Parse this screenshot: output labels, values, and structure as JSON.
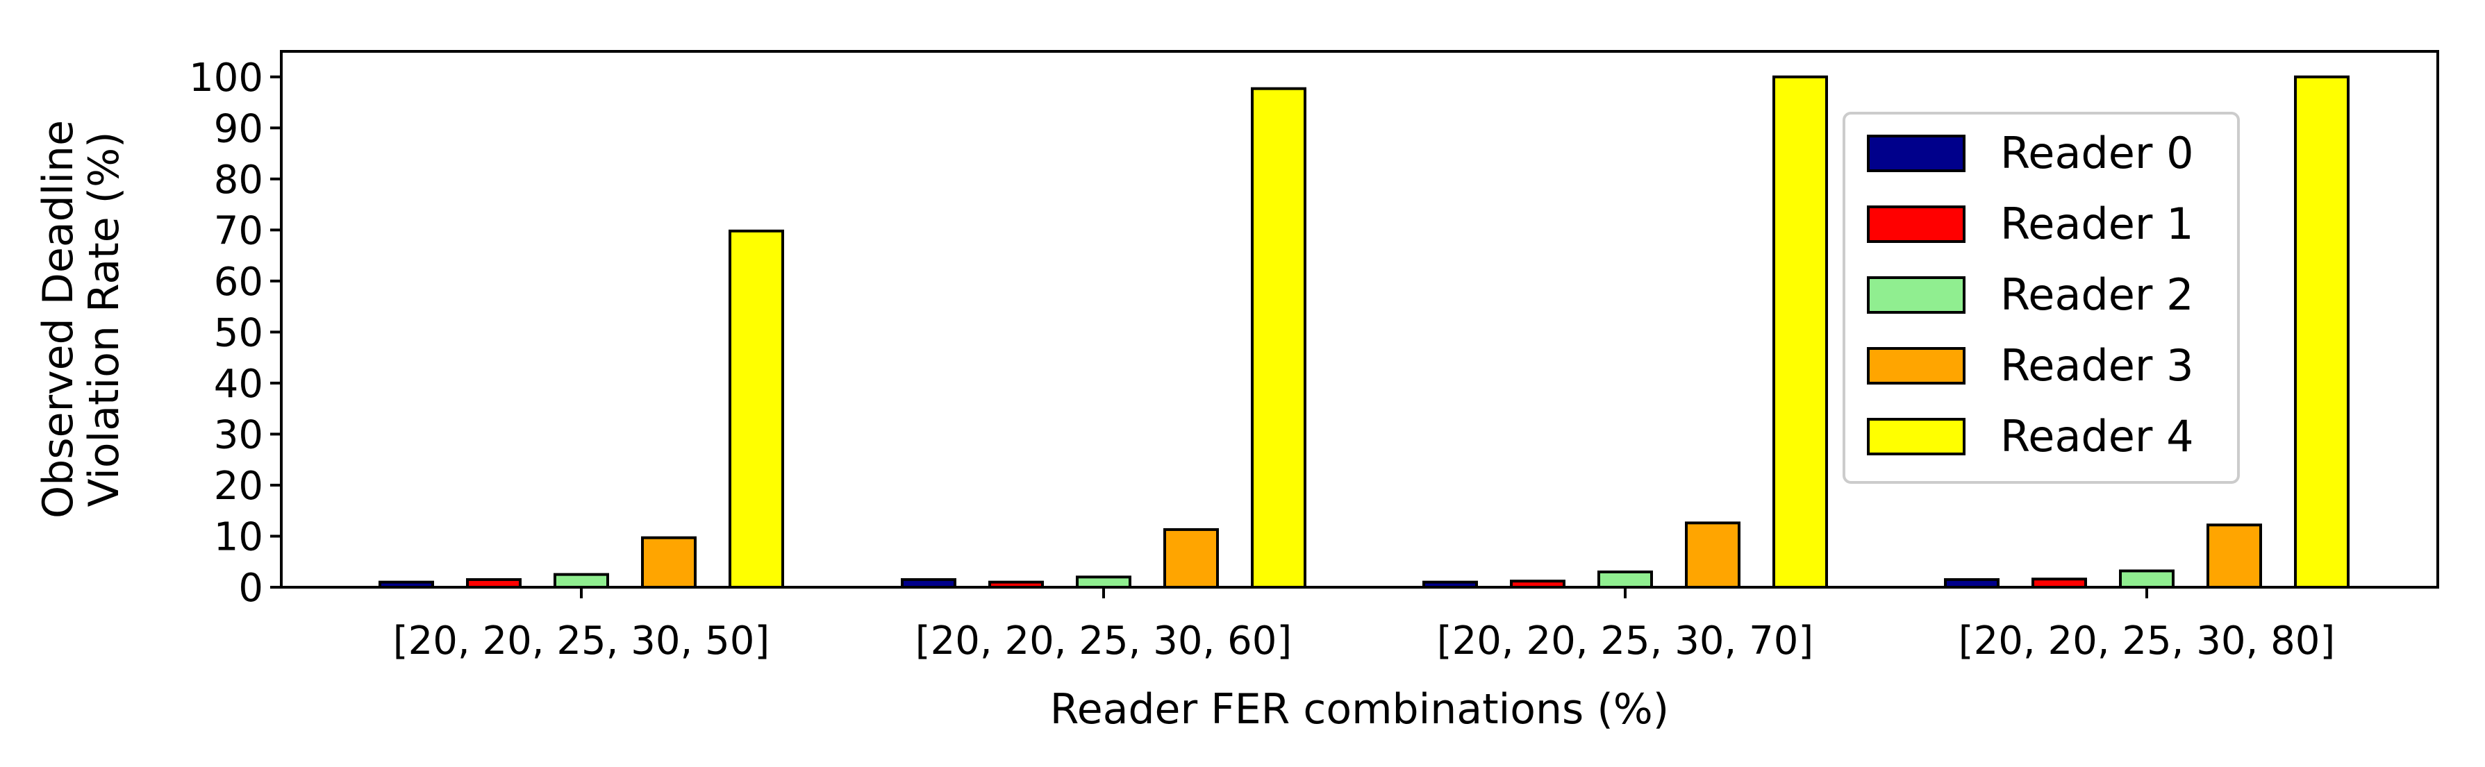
{
  "chart_data": {
    "type": "bar",
    "xlabel": "Reader FER combinations (%)",
    "ylabel_lines": [
      "Observed Deadline",
      "Violation Rate (%)"
    ],
    "ylim": [
      0,
      105
    ],
    "yticks": [
      0,
      10,
      20,
      30,
      40,
      50,
      60,
      70,
      80,
      90,
      100
    ],
    "grid": false,
    "legend_position": "right",
    "categories": [
      "[20, 20, 25, 30, 50]",
      "[20, 20, 25, 30, 60]",
      "[20, 20, 25, 30, 70]",
      "[20, 20, 25, 30, 80]"
    ],
    "series": [
      {
        "name": "Reader 0",
        "color": "#00008b",
        "values": [
          1.0,
          1.5,
          1.0,
          1.5
        ]
      },
      {
        "name": "Reader 1",
        "color": "#ff0000",
        "values": [
          1.5,
          1.0,
          1.2,
          1.6
        ]
      },
      {
        "name": "Reader 2",
        "color": "#90ee90",
        "values": [
          2.5,
          2.0,
          3.0,
          3.2
        ]
      },
      {
        "name": "Reader 3",
        "color": "#ffa500",
        "values": [
          9.7,
          11.3,
          12.6,
          12.2
        ]
      },
      {
        "name": "Reader 4",
        "color": "#ffff00",
        "values": [
          69.8,
          97.7,
          100,
          100
        ]
      }
    ]
  }
}
